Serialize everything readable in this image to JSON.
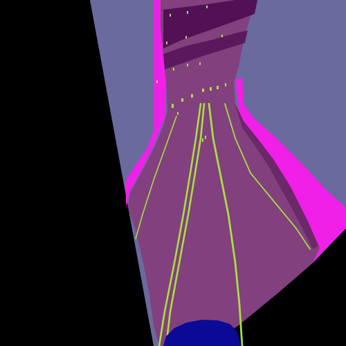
{
  "scene": {
    "type": "3d-track-render",
    "colors": {
      "void": "#000000",
      "sky": "#6A6A9E",
      "track_surface": "#82407E",
      "track_edge": "#F020E8",
      "track_shadow": "#5A1A5A",
      "dark_band": "#4C0C50",
      "lane_line": "#A8E040",
      "player": "#0A0A96"
    },
    "elements": [
      "void-area",
      "sky-backdrop",
      "track-surface",
      "track-edge-left",
      "track-edge-right",
      "lane-markings",
      "far-track-markers",
      "player-vehicle"
    ]
  }
}
